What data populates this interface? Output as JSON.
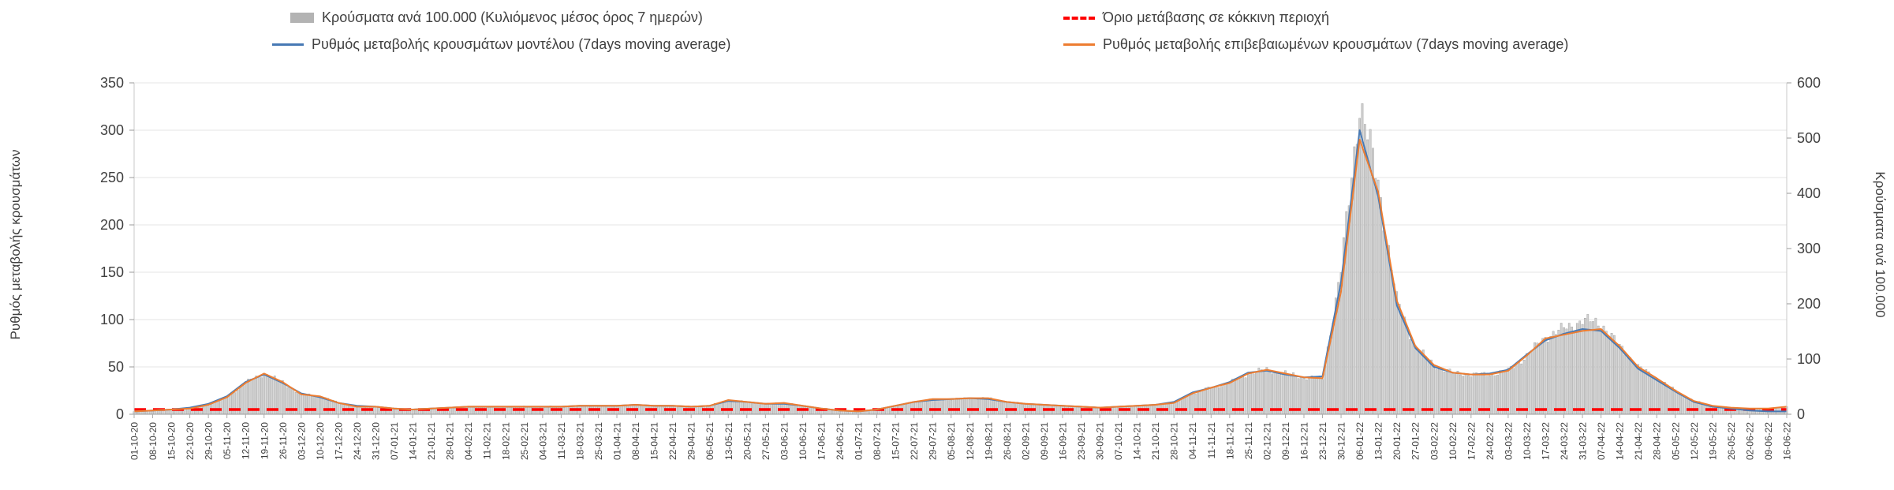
{
  "chart_data": {
    "type": "bar",
    "title": "",
    "grid": true,
    "background": "#ffffff",
    "legend_position": "top",
    "x_resolution": "weekly ticks (daily bars drawn by interpolation between weekly values)",
    "x_tick_labels": [
      "01-10-20",
      "08-10-20",
      "15-10-20",
      "22-10-20",
      "29-10-20",
      "05-11-20",
      "12-11-20",
      "19-11-20",
      "26-11-20",
      "03-12-20",
      "10-12-20",
      "17-12-20",
      "24-12-20",
      "31-12-20",
      "07-01-21",
      "14-01-21",
      "21-01-21",
      "28-01-21",
      "04-02-21",
      "11-02-21",
      "18-02-21",
      "25-02-21",
      "04-03-21",
      "11-03-21",
      "18-03-21",
      "25-03-21",
      "01-04-21",
      "08-04-21",
      "15-04-21",
      "22-04-21",
      "29-04-21",
      "06-05-21",
      "13-05-21",
      "20-05-21",
      "27-05-21",
      "03-06-21",
      "10-06-21",
      "17-06-21",
      "24-06-21",
      "01-07-21",
      "08-07-21",
      "15-07-21",
      "22-07-21",
      "29-07-21",
      "05-08-21",
      "12-08-21",
      "19-08-21",
      "26-08-21",
      "02-09-21",
      "09-09-21",
      "16-09-21",
      "23-09-21",
      "30-09-21",
      "07-10-21",
      "14-10-21",
      "21-10-21",
      "28-10-21",
      "04-11-21",
      "11-11-21",
      "18-11-21",
      "25-11-21",
      "02-12-21",
      "09-12-21",
      "16-12-21",
      "23-12-21",
      "30-12-21",
      "06-01-22",
      "13-01-22",
      "20-01-22",
      "27-01-22",
      "03-02-22",
      "10-02-22",
      "17-02-22",
      "24-02-22",
      "03-03-22",
      "10-03-22",
      "17-03-22",
      "24-03-22",
      "31-03-22",
      "07-04-22",
      "14-04-22",
      "21-04-22",
      "28-04-22",
      "05-05-22",
      "12-05-22",
      "19-05-22",
      "26-05-22",
      "02-06-22",
      "09-06-22",
      "16-06-22"
    ],
    "left_axis": {
      "label": "Ρυθμός μεταβολής κρουσμάτων",
      "ticks": [
        0,
        50,
        100,
        150,
        200,
        250,
        300,
        350
      ],
      "range": [
        0,
        350
      ]
    },
    "right_axis": {
      "label": "Κρούσματα ανά 100.000",
      "ticks": [
        0,
        100,
        200,
        300,
        400,
        500,
        600
      ],
      "range": [
        0,
        600
      ]
    },
    "series": [
      {
        "id": "cases_per_100k_bars",
        "name": "Κρούσματα ανά 100.000 (Κυλιόμενος μέσος όρος 7 ημερών)",
        "type": "bar",
        "axis": "right",
        "color": "#b3b3b3",
        "values": [
          5,
          7,
          9,
          10,
          17,
          31,
          57,
          74,
          58,
          36,
          33,
          21,
          14,
          14,
          10,
          9,
          10,
          12,
          14,
          14,
          14,
          14,
          14,
          14,
          15,
          15,
          15,
          17,
          15,
          15,
          14,
          15,
          26,
          22,
          19,
          21,
          15,
          10,
          7,
          5,
          9,
          15,
          22,
          27,
          27,
          29,
          29,
          22,
          19,
          17,
          15,
          14,
          12,
          14,
          15,
          17,
          21,
          38,
          48,
          57,
          74,
          81,
          74,
          67,
          65,
          260,
          565,
          420,
          206,
          123,
          89,
          75,
          72,
          72,
          79,
          106,
          140,
          155,
          170,
          165,
          123,
          86,
          65,
          43,
          24,
          15,
          12,
          10,
          10,
          14
        ]
      },
      {
        "id": "model_rate_line",
        "name": "Ρυθμός μεταβολής κρουσμάτων μοντέλου (7days moving average)",
        "type": "line",
        "axis": "left",
        "color": "#4779b4",
        "values": [
          3,
          4,
          5,
          7,
          11,
          19,
          34,
          42,
          33,
          22,
          18,
          12,
          9,
          8,
          6,
          5,
          6,
          7,
          8,
          8,
          8,
          8,
          8,
          8,
          9,
          9,
          9,
          10,
          9,
          9,
          8,
          9,
          14,
          13,
          11,
          11,
          9,
          6,
          4,
          3,
          5,
          9,
          13,
          15,
          16,
          17,
          16,
          13,
          11,
          10,
          9,
          8,
          7,
          8,
          9,
          10,
          13,
          23,
          28,
          34,
          44,
          46,
          42,
          39,
          40,
          140,
          300,
          230,
          115,
          70,
          50,
          44,
          42,
          43,
          47,
          63,
          78,
          85,
          90,
          88,
          70,
          48,
          36,
          24,
          13,
          8,
          6,
          4,
          3,
          3
        ]
      },
      {
        "id": "confirmed_rate_line",
        "name": "Ρυθμός μεταβολής επιβεβαιωμένων κρουσμάτων (7days moving average)",
        "type": "line",
        "axis": "left",
        "color": "#ed7d31",
        "values": [
          3,
          4,
          5,
          6,
          10,
          18,
          33,
          43,
          34,
          21,
          19,
          12,
          8,
          8,
          6,
          5,
          6,
          7,
          8,
          8,
          8,
          8,
          8,
          8,
          9,
          9,
          9,
          10,
          9,
          9,
          8,
          9,
          15,
          13,
          11,
          12,
          9,
          6,
          4,
          3,
          5,
          9,
          13,
          16,
          16,
          17,
          17,
          13,
          11,
          10,
          9,
          8,
          7,
          8,
          9,
          10,
          12,
          22,
          28,
          33,
          43,
          47,
          43,
          39,
          38,
          130,
          290,
          235,
          120,
          72,
          52,
          44,
          42,
          42,
          46,
          62,
          80,
          84,
          88,
          90,
          72,
          50,
          38,
          25,
          14,
          9,
          7,
          6,
          6,
          8
        ]
      },
      {
        "id": "red_zone_threshold",
        "name": "Όριο μετάβασης σε κόκκινη περιοχή",
        "type": "threshold",
        "axis": "left",
        "color": "#ff0000",
        "value": 5
      }
    ]
  }
}
